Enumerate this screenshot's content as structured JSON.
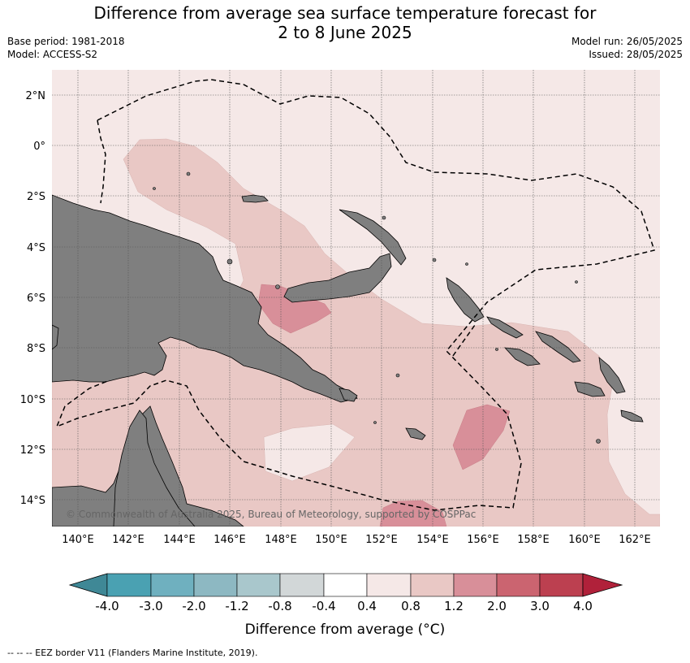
{
  "title_line1": "Difference from average sea surface temperature forecast for",
  "title_line2": "2 to 8 June 2025",
  "base_period": "Base period: 1981-2018",
  "model": "Model: ACCESS-S2",
  "model_run": "Model run: 26/05/2025",
  "issued": "Issued: 28/05/2025",
  "copyright": "© Commonwealth of Australia 2025, Bureau of Meteorology, supported by COSPPac",
  "lat_labels": [
    "2°N",
    "0°",
    "2°S",
    "4°S",
    "6°S",
    "8°S",
    "10°S",
    "12°S",
    "14°S"
  ],
  "lon_labels": [
    "140°E",
    "142°E",
    "144°E",
    "146°E",
    "148°E",
    "150°E",
    "152°E",
    "154°E",
    "156°E",
    "158°E",
    "160°E",
    "162°E"
  ],
  "colorbar": {
    "label": "Difference from average (°C)",
    "ticks": [
      "-4.0",
      "-3.0",
      "-2.0",
      "-1.2",
      "-0.8",
      "-0.4",
      "0.4",
      "0.8",
      "1.2",
      "2.0",
      "3.0",
      "4.0"
    ],
    "colors": [
      "#3f8896",
      "#4aa1b2",
      "#6fb0bf",
      "#8db8c2",
      "#a9c7cc",
      "#d2d7d8",
      "#ffffff",
      "#f5e8e7",
      "#e9c8c5",
      "#d88f99",
      "#cb6470",
      "#bc4050",
      "#b0213a"
    ]
  },
  "footer": "-- -- -- EEZ border V11 (Flanders Marine Institute, 2019)."
}
